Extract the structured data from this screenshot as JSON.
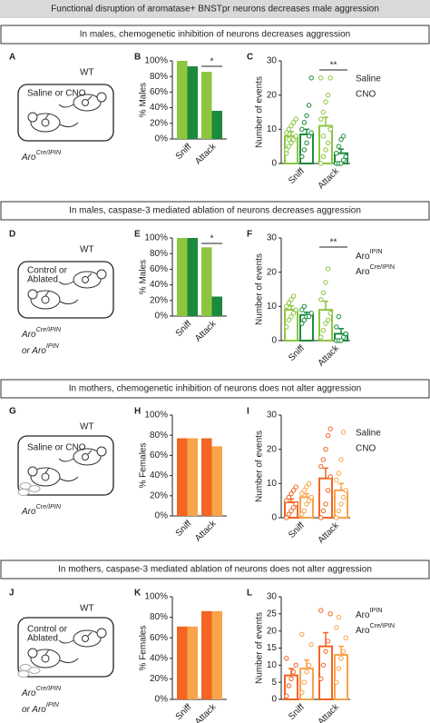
{
  "header": {
    "title": "Functional disruption of aromatase+ BNSTpr neurons decreases male aggression"
  },
  "sections": [
    {
      "title": "In males, chemogenetic inhibition of neurons decreases aggression",
      "diagram": {
        "panel": "A",
        "wt": "WT",
        "treatment": [
          "Saline or CNO"
        ],
        "genotype": [
          {
            "text": "Aro",
            "sup": "Cre/IPIN"
          }
        ]
      }
    },
    {
      "title": "In males, caspase-3 mediated ablation of neurons decreases aggression",
      "diagram": {
        "panel": "D",
        "wt": "WT",
        "treatment": [
          "Control or",
          "Ablated"
        ],
        "genotype": [
          {
            "text": "Aro",
            "sup": "Cre/IPIN"
          },
          {
            "text": "or Aro",
            "sup": "IPIN"
          }
        ]
      }
    },
    {
      "title": "In mothers, chemogenetic inhibition of neurons does not alter aggression",
      "diagram": {
        "panel": "G",
        "wt": "WT",
        "treatment": [
          "Saline or CNO"
        ],
        "genotype": [
          {
            "text": "Aro",
            "sup": "Cre/IPIN"
          }
        ]
      }
    },
    {
      "title": "In mothers, caspase-3 mediated ablation of neurons does not alter aggression",
      "diagram": {
        "panel": "J",
        "wt": "WT",
        "treatment": [
          "Control or",
          "Ablated"
        ],
        "genotype": [
          {
            "text": "Aro",
            "sup": "Cre/IPIN"
          },
          {
            "text": "or Aro",
            "sup": "IPIN"
          }
        ]
      }
    }
  ],
  "chart_data": [
    {
      "type": "bar",
      "panel": "B",
      "ylabel": "% Males",
      "categories": [
        "Sniff",
        "Attack"
      ],
      "series": [
        {
          "color": "#8cc63f",
          "values": [
            100,
            86
          ]
        },
        {
          "color": "#1b8a3c",
          "values": [
            93,
            36
          ]
        }
      ],
      "ylim": [
        0,
        100
      ],
      "yticks": [
        {
          "value": 0,
          "label": "0%"
        },
        {
          "value": 20,
          "label": "20%"
        },
        {
          "value": 40,
          "label": "40%"
        },
        {
          "value": 60,
          "label": "60%"
        },
        {
          "value": 80,
          "label": "80%"
        },
        {
          "value": 100,
          "label": "100%"
        }
      ],
      "sig": "*"
    },
    {
      "type": "bar_dot",
      "panel": "C",
      "ylabel": "Number of events",
      "categories": [
        "Sniff",
        "Attack"
      ],
      "series": [
        {
          "name": "Saline",
          "color": "#8cc63f",
          "values": [
            8,
            11
          ],
          "errors": [
            1.3,
            2.5
          ],
          "points": [
            [
              3,
              5,
              6,
              7,
              8,
              9,
              10,
              11,
              12,
              13,
              4,
              7
            ],
            [
              0,
              2,
              4,
              6,
              10,
              13,
              15,
              18,
              20,
              25,
              25,
              8
            ]
          ]
        },
        {
          "name": "CNO",
          "color": "#1b8a3c",
          "values": [
            8.5,
            3
          ],
          "errors": [
            1.5,
            1.2
          ],
          "points": [
            [
              2,
              4,
              6,
              8,
              9,
              10,
              12,
              14,
              17,
              25
            ],
            [
              0,
              0,
              0,
              1,
              2,
              3,
              5,
              7,
              8
            ]
          ]
        }
      ],
      "ylim": [
        0,
        30
      ],
      "yticks": [
        0,
        10,
        20,
        30
      ],
      "sig": "**"
    },
    {
      "type": "bar",
      "panel": "E",
      "ylabel": "% Males",
      "categories": [
        "Sniff",
        "Attack"
      ],
      "series": [
        {
          "color": "#8cc63f",
          "values": [
            100,
            88
          ]
        },
        {
          "color": "#1b8a3c",
          "values": [
            100,
            25
          ]
        }
      ],
      "ylim": [
        0,
        100
      ],
      "yticks": [
        {
          "value": 0,
          "label": "0%"
        },
        {
          "value": 20,
          "label": "20%"
        },
        {
          "value": 40,
          "label": "40%"
        },
        {
          "value": 60,
          "label": "60%"
        },
        {
          "value": 80,
          "label": "80%"
        },
        {
          "value": 100,
          "label": "100%"
        }
      ],
      "sig": "*"
    },
    {
      "type": "bar_dot",
      "panel": "F",
      "ylabel": "Number of events",
      "categories": [
        "Sniff",
        "Attack"
      ],
      "series": [
        {
          "name": "Aro",
          "name_sup": "IPIN",
          "color": "#8cc63f",
          "values": [
            9,
            9
          ],
          "errors": [
            1.2,
            2.5
          ],
          "points": [
            [
              4,
              6,
              7,
              8,
              9,
              10,
              11,
              12,
              13
            ],
            [
              1,
              3,
              5,
              6,
              8,
              12,
              14,
              17,
              21
            ]
          ]
        },
        {
          "name": "Aro",
          "name_sup": "Cre/IPIN",
          "color": "#1b8a3c",
          "values": [
            7.5,
            2
          ],
          "errors": [
            0.8,
            1.5
          ],
          "points": [
            [
              5,
              6,
              7,
              7,
              8,
              9,
              10
            ],
            [
              0,
              0,
              0,
              1,
              2,
              4,
              7
            ]
          ]
        }
      ],
      "ylim": [
        0,
        30
      ],
      "yticks": [
        0,
        10,
        20,
        30
      ],
      "sig": "**"
    },
    {
      "type": "bar",
      "panel": "H",
      "ylabel": "% Females",
      "categories": [
        "Sniff",
        "Attack"
      ],
      "series": [
        {
          "color": "#f26522",
          "values": [
            77,
            77
          ]
        },
        {
          "color": "#f9a34a",
          "values": [
            77,
            69
          ]
        }
      ],
      "ylim": [
        0,
        100
      ],
      "yticks": [
        {
          "value": 0,
          "label": "0%"
        },
        {
          "value": 20,
          "label": "20%"
        },
        {
          "value": 40,
          "label": "40%"
        },
        {
          "value": 60,
          "label": "60%"
        },
        {
          "value": 80,
          "label": "80%"
        },
        {
          "value": 100,
          "label": "100%"
        }
      ]
    },
    {
      "type": "bar_dot",
      "panel": "I",
      "ylabel": "Number of events",
      "categories": [
        "Sniff",
        "Attack"
      ],
      "series": [
        {
          "name": "Saline",
          "color": "#f26522",
          "values": [
            4.5,
            11.5
          ],
          "errors": [
            1,
            3
          ],
          "points": [
            [
              0,
              1,
              2,
              3,
              4,
              5,
              6,
              7,
              8,
              9
            ],
            [
              0,
              2,
              4,
              8,
              12,
              15,
              17,
              20,
              24,
              26
            ]
          ]
        },
        {
          "name": "CNO",
          "color": "#f9a34a",
          "values": [
            6,
            8
          ],
          "errors": [
            1,
            2
          ],
          "points": [
            [
              1,
              2,
              4,
              5,
              6,
              7,
              8,
              9,
              10
            ],
            [
              0,
              2,
              4,
              6,
              8,
              11,
              13,
              17,
              25
            ]
          ]
        }
      ],
      "ylim": [
        0,
        30
      ],
      "yticks": [
        0,
        10,
        20,
        30
      ]
    },
    {
      "type": "bar",
      "panel": "K",
      "ylabel": "% Females",
      "categories": [
        "Sniff",
        "Attack"
      ],
      "series": [
        {
          "color": "#f26522",
          "values": [
            71,
            86
          ]
        },
        {
          "color": "#f9a34a",
          "values": [
            71,
            86
          ]
        }
      ],
      "ylim": [
        0,
        100
      ],
      "yticks": [
        {
          "value": 0,
          "label": "0%"
        },
        {
          "value": 20,
          "label": "20%"
        },
        {
          "value": 40,
          "label": "40%"
        },
        {
          "value": 60,
          "label": "60%"
        },
        {
          "value": 80,
          "label": "80%"
        },
        {
          "value": 100,
          "label": "100%"
        }
      ]
    },
    {
      "type": "bar_dot",
      "panel": "L",
      "ylabel": "Number of events",
      "categories": [
        "Sniff",
        "Attack"
      ],
      "series": [
        {
          "name": "Aro",
          "name_sup": "IPIN",
          "color": "#f26522",
          "values": [
            7,
            15.5
          ],
          "errors": [
            2,
            4
          ],
          "points": [
            [
              1,
              4,
              6,
              8,
              10,
              12
            ],
            [
              6,
              10,
              14,
              17,
              25,
              26
            ]
          ]
        },
        {
          "name": "Aro",
          "name_sup": "Cre/IPIN",
          "color": "#f9a34a",
          "values": [
            9,
            13
          ],
          "errors": [
            2.5,
            2.5
          ],
          "points": [
            [
              2,
              5,
              8,
              10,
              16,
              19
            ],
            [
              5,
              9,
              12,
              14,
              18,
              21,
              24
            ]
          ]
        }
      ],
      "ylim": [
        0,
        30
      ],
      "yticks": [
        0,
        5,
        10,
        15,
        20,
        25,
        30
      ]
    }
  ]
}
